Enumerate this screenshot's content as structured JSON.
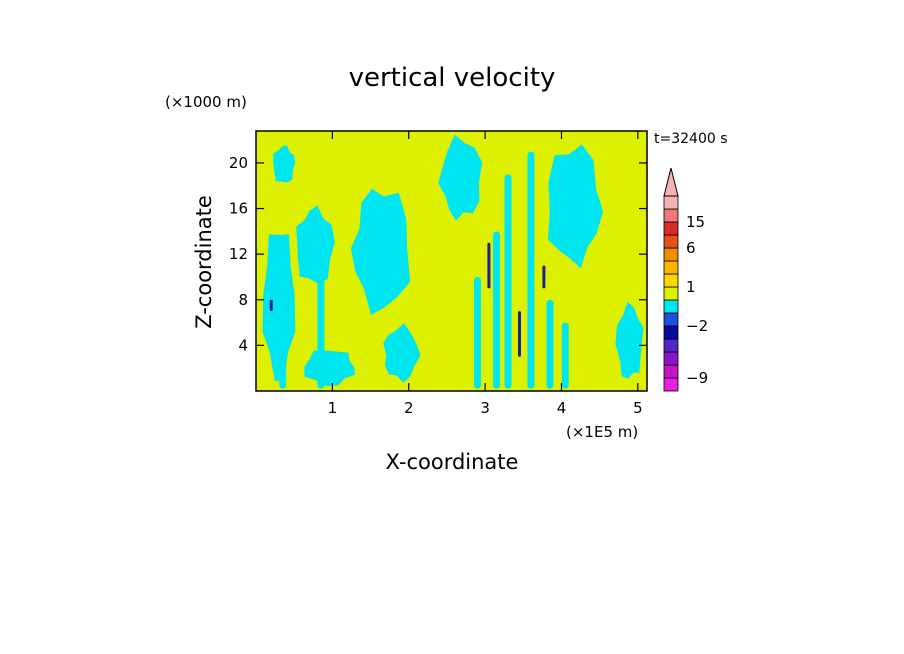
{
  "chart_data": {
    "type": "heatmap",
    "title": "vertical velocity",
    "xlabel": "X-coordinate",
    "ylabel": "Z-coordinate",
    "x_unit_label": "(×1E5 m)",
    "y_unit_label": "(×1000 m)",
    "time_label": "t=32400 s",
    "xlim": [
      0,
      5.12
    ],
    "ylim": [
      0,
      22.8
    ],
    "x_ticks": [
      1,
      2,
      3,
      4,
      5
    ],
    "y_ticks": [
      4,
      8,
      12,
      16,
      20
    ],
    "x_tick_labels": [
      "1",
      "2",
      "3",
      "4",
      "5"
    ],
    "y_tick_labels": [
      "4",
      "8",
      "12",
      "16",
      "20"
    ],
    "colorbar": {
      "labels": [
        {
          "text": "15",
          "value": 15
        },
        {
          "text": "6",
          "value": 6
        },
        {
          "text": "1",
          "value": 1
        },
        {
          "text": "−2",
          "value": -2
        },
        {
          "text": "−9",
          "value": -9
        }
      ],
      "bands": [
        {
          "lower": -12,
          "upper": -9,
          "color": "#e61ee6"
        },
        {
          "lower": -9,
          "upper": -6,
          "color": "#c812c8"
        },
        {
          "lower": -6,
          "upper": -4,
          "color": "#8c14c8"
        },
        {
          "lower": -4,
          "upper": -3,
          "color": "#5028c8"
        },
        {
          "lower": -3,
          "upper": -2,
          "color": "#0a0aa0"
        },
        {
          "lower": -2,
          "upper": -1,
          "color": "#1e50dc"
        },
        {
          "lower": -1,
          "upper": 0,
          "color": "#00e6f0"
        },
        {
          "lower": 0,
          "upper": 1,
          "color": "#dcf000"
        },
        {
          "lower": 1,
          "upper": 2,
          "color": "#ffd700"
        },
        {
          "lower": 2,
          "upper": 3,
          "color": "#ffb400"
        },
        {
          "lower": 3,
          "upper": 6,
          "color": "#f08c00"
        },
        {
          "lower": 6,
          "upper": 10,
          "color": "#e65014"
        },
        {
          "lower": 10,
          "upper": 15,
          "color": "#dc2828"
        },
        {
          "lower": 15,
          "upper": 20,
          "color": "#f07878"
        },
        {
          "lower": 20,
          "upper": 30,
          "color": "#f5b4b4"
        }
      ],
      "extend": "max"
    },
    "field_colors": {
      "negative": "#00e6f0",
      "positive": "#dcf000",
      "strong_negative": "#1e1e96"
    },
    "regions": [
      {
        "sign": "negative",
        "x": [
          0.05,
          0.55
        ],
        "z": [
          0.5,
          16.5
        ]
      },
      {
        "sign": "negative",
        "x": [
          0.45,
          1.05
        ],
        "z": [
          9,
          17
        ]
      },
      {
        "sign": "negative",
        "x": [
          1.15,
          2.05
        ],
        "z": [
          6,
          19
        ]
      },
      {
        "sign": "negative",
        "x": [
          1.6,
          2.15
        ],
        "z": [
          0.3,
          6
        ]
      },
      {
        "sign": "negative",
        "x": [
          2.35,
          3.0
        ],
        "z": [
          14,
          22.5
        ]
      },
      {
        "sign": "negative",
        "x": [
          3.75,
          4.6
        ],
        "z": [
          9.5,
          22
        ]
      },
      {
        "sign": "negative",
        "x": [
          4.7,
          5.12
        ],
        "z": [
          0.2,
          8
        ]
      },
      {
        "sign": "negative",
        "x": [
          0.6,
          1.4
        ],
        "z": [
          0.2,
          4
        ]
      },
      {
        "sign": "negative",
        "x": [
          0.2,
          0.55
        ],
        "z": [
          18,
          22
        ]
      }
    ],
    "streaks": [
      {
        "sign": "strong_negative",
        "x": 3.05,
        "z": [
          9,
          13
        ]
      },
      {
        "sign": "strong_negative",
        "x": 3.45,
        "z": [
          3,
          7
        ]
      },
      {
        "sign": "strong_negative",
        "x": 3.77,
        "z": [
          9,
          11
        ]
      },
      {
        "sign": "strong_negative",
        "x": 0.2,
        "z": [
          7,
          8
        ]
      },
      {
        "sign": "negative",
        "x": 2.9,
        "z": [
          0.2,
          10
        ]
      },
      {
        "sign": "negative",
        "x": 3.15,
        "z": [
          0.2,
          14
        ]
      },
      {
        "sign": "negative",
        "x": 3.3,
        "z": [
          0.2,
          19
        ]
      },
      {
        "sign": "negative",
        "x": 3.6,
        "z": [
          0.2,
          21
        ]
      },
      {
        "sign": "negative",
        "x": 3.85,
        "z": [
          0.2,
          8
        ]
      },
      {
        "sign": "negative",
        "x": 4.05,
        "z": [
          0.2,
          6
        ]
      },
      {
        "sign": "negative",
        "x": 0.35,
        "z": [
          0.2,
          6
        ]
      },
      {
        "sign": "negative",
        "x": 0.85,
        "z": [
          0.2,
          12
        ]
      }
    ]
  }
}
